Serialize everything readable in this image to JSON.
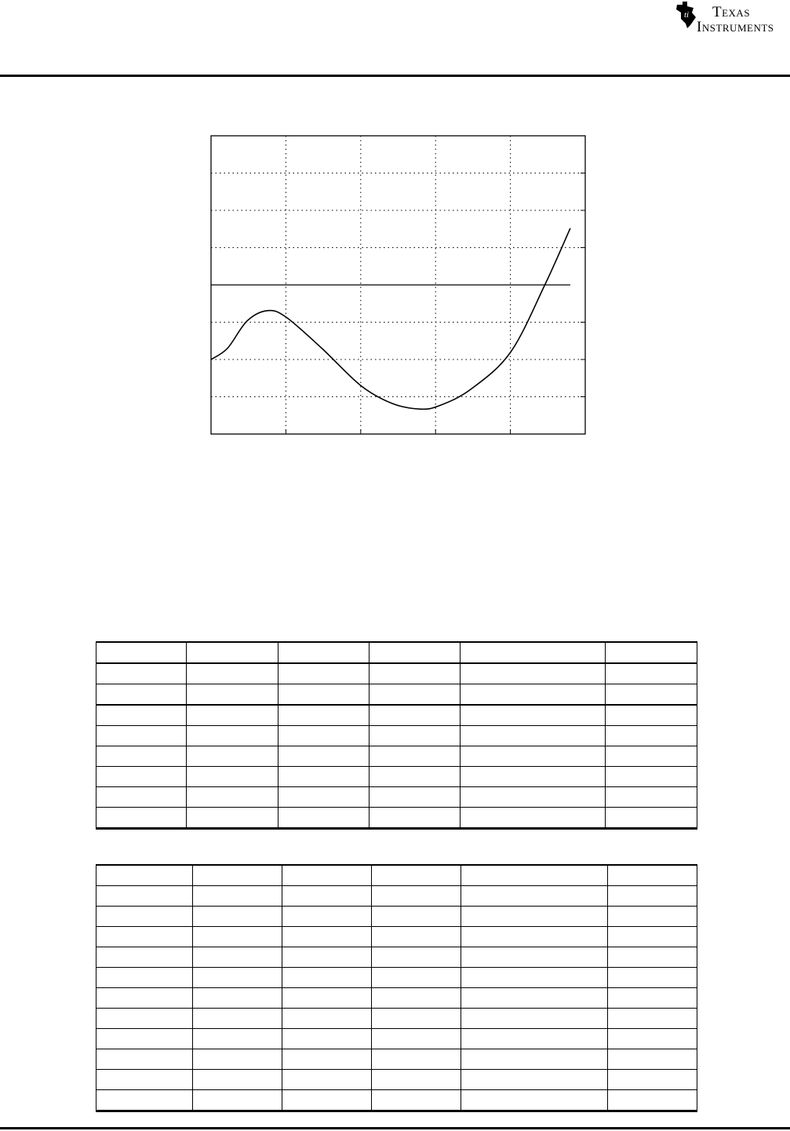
{
  "header": {
    "logo_text": [
      "Texas",
      "Instruments"
    ],
    "logo_icon": "ti-state-logo-icon"
  },
  "chart_data": {
    "type": "line",
    "title": "",
    "xlabel": "",
    "ylabel": "",
    "grid": true,
    "tick_labels_shown": false,
    "xlim": [
      0,
      5
    ],
    "ylim": [
      -4,
      4
    ],
    "reference_line_y": 0,
    "series": [
      {
        "x": [
          0,
          0.22,
          0.48,
          0.75,
          1.0,
          1.48,
          2.0,
          2.42,
          2.79,
          3.05,
          3.47,
          4.0,
          4.46,
          4.8
        ],
        "y": [
          -2.0,
          -1.7,
          -0.97,
          -0.69,
          -0.86,
          -1.7,
          -2.7,
          -3.18,
          -3.33,
          -3.24,
          -2.8,
          -1.81,
          0,
          1.52
        ]
      }
    ]
  },
  "tables": [
    {
      "rows": [
        [
          "",
          "",
          "",
          "",
          "",
          ""
        ],
        [
          "",
          "",
          "",
          "",
          "",
          ""
        ],
        [
          "",
          "",
          "",
          "",
          "",
          ""
        ],
        [
          "",
          "",
          "",
          "",
          "",
          ""
        ],
        [
          "",
          "",
          "",
          "",
          "",
          ""
        ],
        [
          "",
          "",
          "",
          "",
          "",
          ""
        ],
        [
          "",
          "",
          "",
          "",
          "",
          ""
        ],
        [
          "",
          "",
          "",
          "",
          "",
          ""
        ],
        [
          "",
          "",
          "",
          "",
          "",
          ""
        ]
      ]
    },
    {
      "rows": [
        [
          "",
          "",
          "",
          "",
          "",
          ""
        ],
        [
          "",
          "",
          "",
          "",
          "",
          ""
        ],
        [
          "",
          "",
          "",
          "",
          "",
          ""
        ],
        [
          "",
          "",
          "",
          "",
          "",
          ""
        ],
        [
          "",
          "",
          "",
          "",
          "",
          ""
        ],
        [
          "",
          "",
          "",
          "",
          "",
          ""
        ],
        [
          "",
          "",
          "",
          "",
          "",
          ""
        ],
        [
          "",
          "",
          "",
          "",
          "",
          ""
        ],
        [
          "",
          "",
          "",
          "",
          "",
          ""
        ],
        [
          "",
          "",
          "",
          "",
          "",
          ""
        ],
        [
          "",
          "",
          "",
          "",
          "",
          ""
        ],
        [
          "",
          "",
          "",
          "",
          "",
          ""
        ]
      ]
    }
  ]
}
